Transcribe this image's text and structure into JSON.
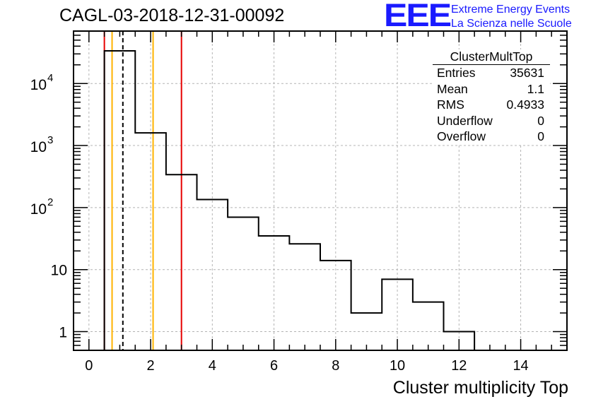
{
  "title": "CAGL-03-2018-12-31-00092",
  "logo": {
    "mark": "EEE",
    "line1": "Extreme Energy Events",
    "line2": "La Scienza nelle Scuole"
  },
  "stats": {
    "name": "ClusterMultTop",
    "rows": [
      {
        "label": "Entries",
        "value": "35631"
      },
      {
        "label": "Mean",
        "value": "1.1"
      },
      {
        "label": "RMS",
        "value": "0.4933"
      },
      {
        "label": "Underflow",
        "value": "0"
      },
      {
        "label": "Overflow",
        "value": "0"
      }
    ]
  },
  "colors": {
    "histogram": "#000000",
    "red_line": "#e60000",
    "orange_line": "#ffb300",
    "grid": "#b4b4b4"
  },
  "chart_data": {
    "type": "histogram",
    "title": "CAGL-03-2018-12-31-00092",
    "xlabel": "Cluster multiplicity Top",
    "ylabel": "",
    "xlim": [
      -0.5,
      15.5
    ],
    "ylim": [
      0.5,
      70000
    ],
    "yscale": "log",
    "grid": true,
    "bin_width": 1,
    "bin_centers": [
      1,
      2,
      3,
      4,
      5,
      6,
      7,
      8,
      9,
      10,
      11,
      12
    ],
    "counts": [
      33600,
      1600,
      340,
      135,
      70,
      35,
      26,
      14,
      2,
      7,
      3,
      1
    ],
    "x_ticks": [
      0,
      2,
      4,
      6,
      8,
      10,
      12,
      14
    ],
    "x_tick_labels": [
      "0",
      "2",
      "4",
      "6",
      "8",
      "10",
      "12",
      "14"
    ],
    "y_ticks": [
      1,
      10,
      100,
      1000,
      10000
    ],
    "y_tick_base": "10",
    "y_tick_labels": [
      "1",
      "10",
      "",
      "",
      ""
    ],
    "y_tick_exponents": [
      "",
      "",
      "2",
      "3",
      "4"
    ],
    "vertical_lines": [
      {
        "x": 0.5,
        "color": "red",
        "style": "solid"
      },
      {
        "x": 0.75,
        "color": "orange",
        "style": "solid"
      },
      {
        "x": 1.1,
        "color": "black",
        "style": "dashed"
      },
      {
        "x": 2.08,
        "color": "orange",
        "style": "solid"
      },
      {
        "x": 3.0,
        "color": "red",
        "style": "solid"
      }
    ]
  }
}
